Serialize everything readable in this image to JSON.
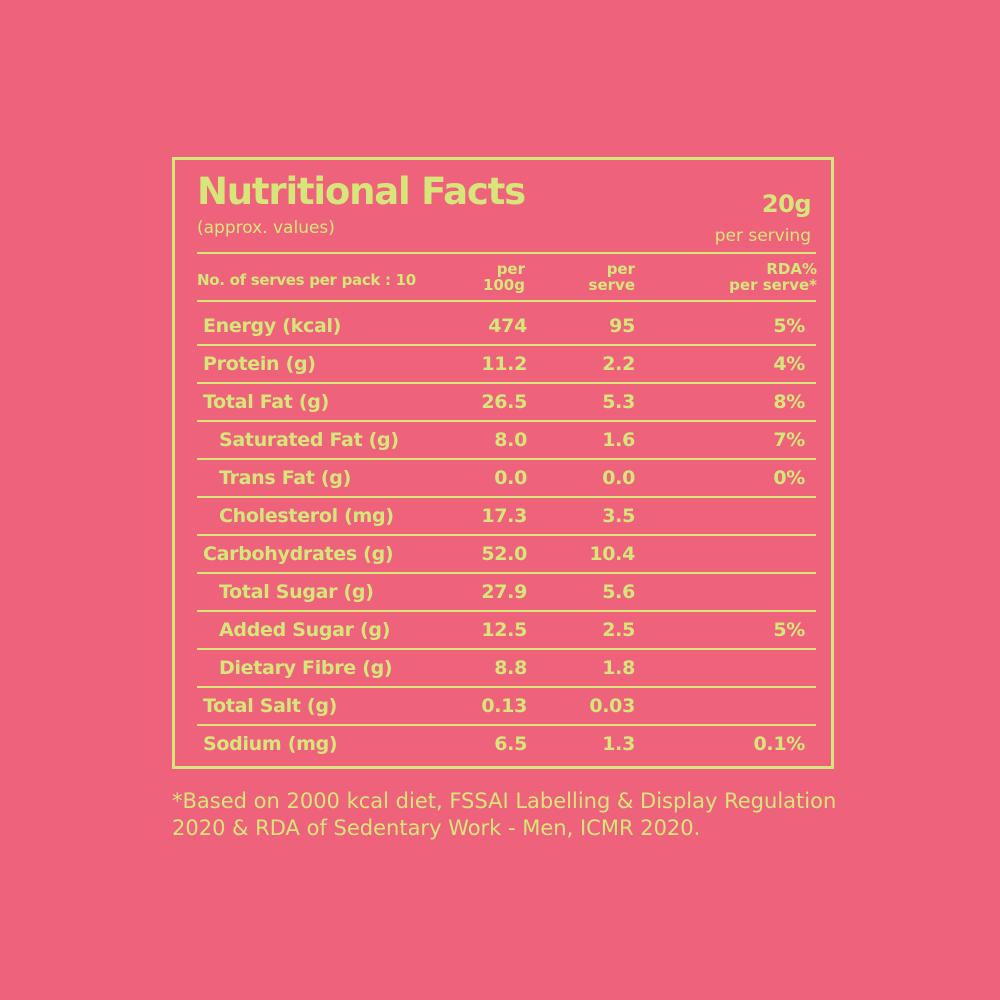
{
  "label": {
    "title": "Nutritional Facts",
    "subtitle": "(approx. values)",
    "serving_size": "20g",
    "serving_label": "per serving",
    "headers": {
      "serves_per_pack": "No. of serves per pack : 10",
      "per_100g_line1": "per",
      "per_100g_line2": "100g",
      "per_serve_line1": "per",
      "per_serve_line2": "serve",
      "rda_line1": "RDA%",
      "rda_line2": "per serve*"
    },
    "rows": [
      {
        "name": "Energy (kcal)",
        "per_100g": "474",
        "per_serve": "95",
        "rda": "5%"
      },
      {
        "name": "Protein (g)",
        "per_100g": "11.2",
        "per_serve": "2.2",
        "rda": "4%"
      },
      {
        "name": "Total Fat (g)",
        "per_100g": "26.5",
        "per_serve": "5.3",
        "rda": "8%"
      },
      {
        "name": "Saturated Fat (g)",
        "per_100g": "8.0",
        "per_serve": "1.6",
        "rda": "7%"
      },
      {
        "name": "Trans Fat (g)",
        "per_100g": "0.0",
        "per_serve": "0.0",
        "rda": "0%"
      },
      {
        "name": "Cholesterol (mg)",
        "per_100g": "17.3",
        "per_serve": "3.5",
        "rda": ""
      },
      {
        "name": "Carbohydrates (g)",
        "per_100g": "52.0",
        "per_serve": "10.4",
        "rda": ""
      },
      {
        "name": "Total Sugar (g)",
        "per_100g": "27.9",
        "per_serve": "5.6",
        "rda": ""
      },
      {
        "name": "Added Sugar (g)",
        "per_100g": "12.5",
        "per_serve": "2.5",
        "rda": "5%"
      },
      {
        "name": "Dietary Fibre (g)",
        "per_100g": "8.8",
        "per_serve": "1.8",
        "rda": ""
      },
      {
        "name": "Total Salt (g)",
        "per_100g": "0.13",
        "per_serve": "0.03",
        "rda": ""
      },
      {
        "name": "Sodium (mg)",
        "per_100g": "6.5",
        "per_serve": "1.3",
        "rda": "0.1%"
      }
    ]
  },
  "footnote": "*Based on 2000 kcal diet, FSSAI Labelling & Display Regulation 2020 & RDA of Sedentary Work - Men, ICMR 2020.",
  "colors": {
    "background": "#ef627b",
    "foreground": "#d6e67a"
  }
}
